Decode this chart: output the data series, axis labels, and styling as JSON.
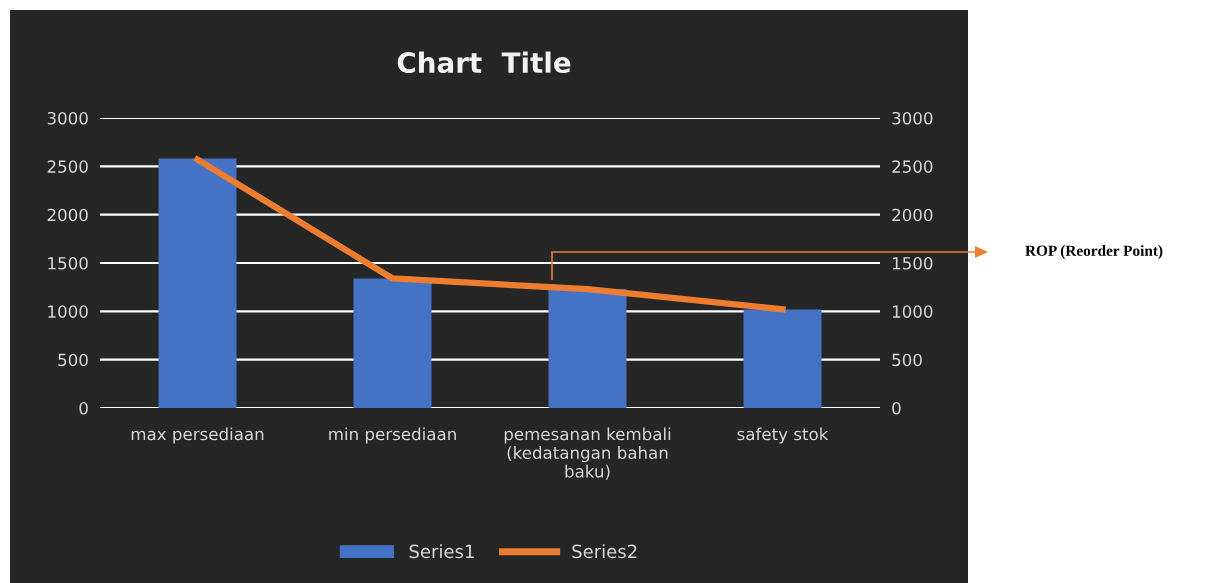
{
  "chart_data": {
    "type": "bar",
    "title": "Chart  Title",
    "categories": [
      "max persediaan",
      "min persediaan",
      "pemesanan kembali (kedatangan bahan baku)",
      "safety stok"
    ],
    "series": [
      {
        "name": "Series1",
        "color": "#4472c4",
        "values": [
          2580,
          1340,
          1230,
          1020
        ]
      },
      {
        "name": "Series2",
        "type": "line",
        "color": "#ed7d31",
        "values": [
          2570,
          1340,
          1230,
          1020
        ]
      }
    ],
    "ylim": [
      0,
      3000
    ],
    "yticks": [
      0,
      500,
      1000,
      1500,
      2000,
      2500,
      3000
    ],
    "y2lim": [
      0,
      3000
    ],
    "y2ticks": [
      0,
      500,
      1000,
      1500,
      2000,
      2500,
      3000
    ],
    "grid": "y",
    "legend": "bottom",
    "annotations": [
      "ROP (Reorder Point)"
    ]
  }
}
